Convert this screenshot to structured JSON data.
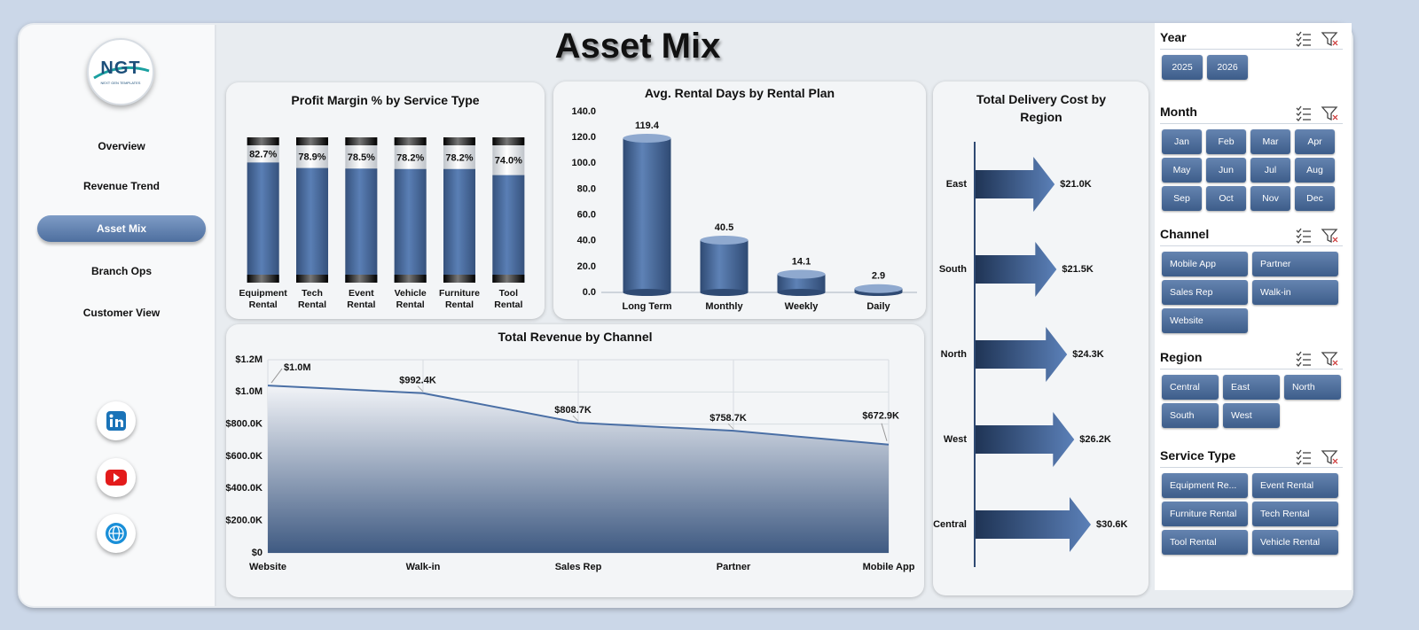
{
  "nav": {
    "logo": "NGT",
    "logo_caption": "NEXT GEN TEMPLATES",
    "items": [
      "Overview",
      "Revenue Trend",
      "Asset Mix",
      "Branch Ops",
      "Customer View"
    ],
    "active": 2
  },
  "title": "Asset Mix",
  "chart_data": [
    {
      "type": "bar",
      "title": "Profit Margin % by Service Type",
      "categories": [
        "Equipment Rental",
        "Tech Rental",
        "Event Rental",
        "Vehicle Rental",
        "Furniture Rental",
        "Tool Rental"
      ],
      "values": [
        82.7,
        78.9,
        78.5,
        78.2,
        78.2,
        74.0
      ],
      "value_labels": [
        "82.7%",
        "78.9%",
        "78.5%",
        "78.2%",
        "78.2%",
        "74.0%"
      ],
      "ylim": [
        0,
        100
      ],
      "color": "#4a6fa5"
    },
    {
      "type": "bar",
      "title": "Avg. Rental Days by Rental Plan",
      "categories": [
        "Long Term",
        "Monthly",
        "Weekly",
        "Daily"
      ],
      "values": [
        119.4,
        40.5,
        14.1,
        2.9
      ],
      "ylim": [
        0,
        140
      ],
      "yticks": [
        {
          "value": 0,
          "label": "0.0"
        },
        {
          "value": 20,
          "label": "20.0"
        },
        {
          "value": 40,
          "label": "40.0"
        },
        {
          "value": 60,
          "label": "60.0"
        },
        {
          "value": 80,
          "label": "80.0"
        },
        {
          "value": 100,
          "label": "100.0"
        },
        {
          "value": 120,
          "label": "120.0"
        },
        {
          "value": 140,
          "label": "140.0"
        }
      ],
      "color": "#4a6fa5"
    },
    {
      "type": "area",
      "title": "Total Revenue by Channel",
      "categories": [
        "Website",
        "Walk-in",
        "Sales Rep",
        "Partner",
        "Mobile App"
      ],
      "values": [
        1040000,
        992400,
        808700,
        758700,
        672900
      ],
      "value_labels": [
        "$1.0M",
        "$992.4K",
        "$808.7K",
        "$758.7K",
        "$672.9K"
      ],
      "ylim": [
        0,
        1200000
      ],
      "yticks": [
        {
          "value": 0,
          "label": "$0"
        },
        {
          "value": 200000,
          "label": "$200.0K"
        },
        {
          "value": 400000,
          "label": "$400.0K"
        },
        {
          "value": 600000,
          "label": "$600.0K"
        },
        {
          "value": 800000,
          "label": "$800.0K"
        },
        {
          "value": 1000000,
          "label": "$1.0M"
        },
        {
          "value": 1200000,
          "label": "$1.2M"
        }
      ],
      "grid": true,
      "color": "#4a6fa5"
    },
    {
      "type": "bar",
      "orientation": "horizontal",
      "title": "Total Delivery Cost by Region",
      "categories": [
        "East",
        "South",
        "North",
        "West",
        "Central"
      ],
      "values": [
        21000,
        21500,
        24300,
        26200,
        30600
      ],
      "value_labels": [
        "$21.0K",
        "$21.5K",
        "$24.3K",
        "$26.2K",
        "$30.6K"
      ],
      "color": "#4a6fa5"
    }
  ],
  "slicers": [
    {
      "title": "Year",
      "options": [
        "2025",
        "2026"
      ]
    },
    {
      "title": "Month",
      "options": [
        "Jan",
        "Feb",
        "Mar",
        "Apr",
        "May",
        "Jun",
        "Jul",
        "Aug",
        "Sep",
        "Oct",
        "Nov",
        "Dec"
      ]
    },
    {
      "title": "Channel",
      "options": [
        "Mobile App",
        "Partner",
        "Sales Rep",
        "Walk-in",
        "Website"
      ]
    },
    {
      "title": "Region",
      "options": [
        "Central",
        "East",
        "North",
        "South",
        "West"
      ]
    },
    {
      "title": "Service Type",
      "options": [
        "Equipment Re...",
        "Event Rental",
        "Furniture Rental",
        "Tech Rental",
        "Tool Rental",
        "Vehicle Rental"
      ]
    }
  ]
}
